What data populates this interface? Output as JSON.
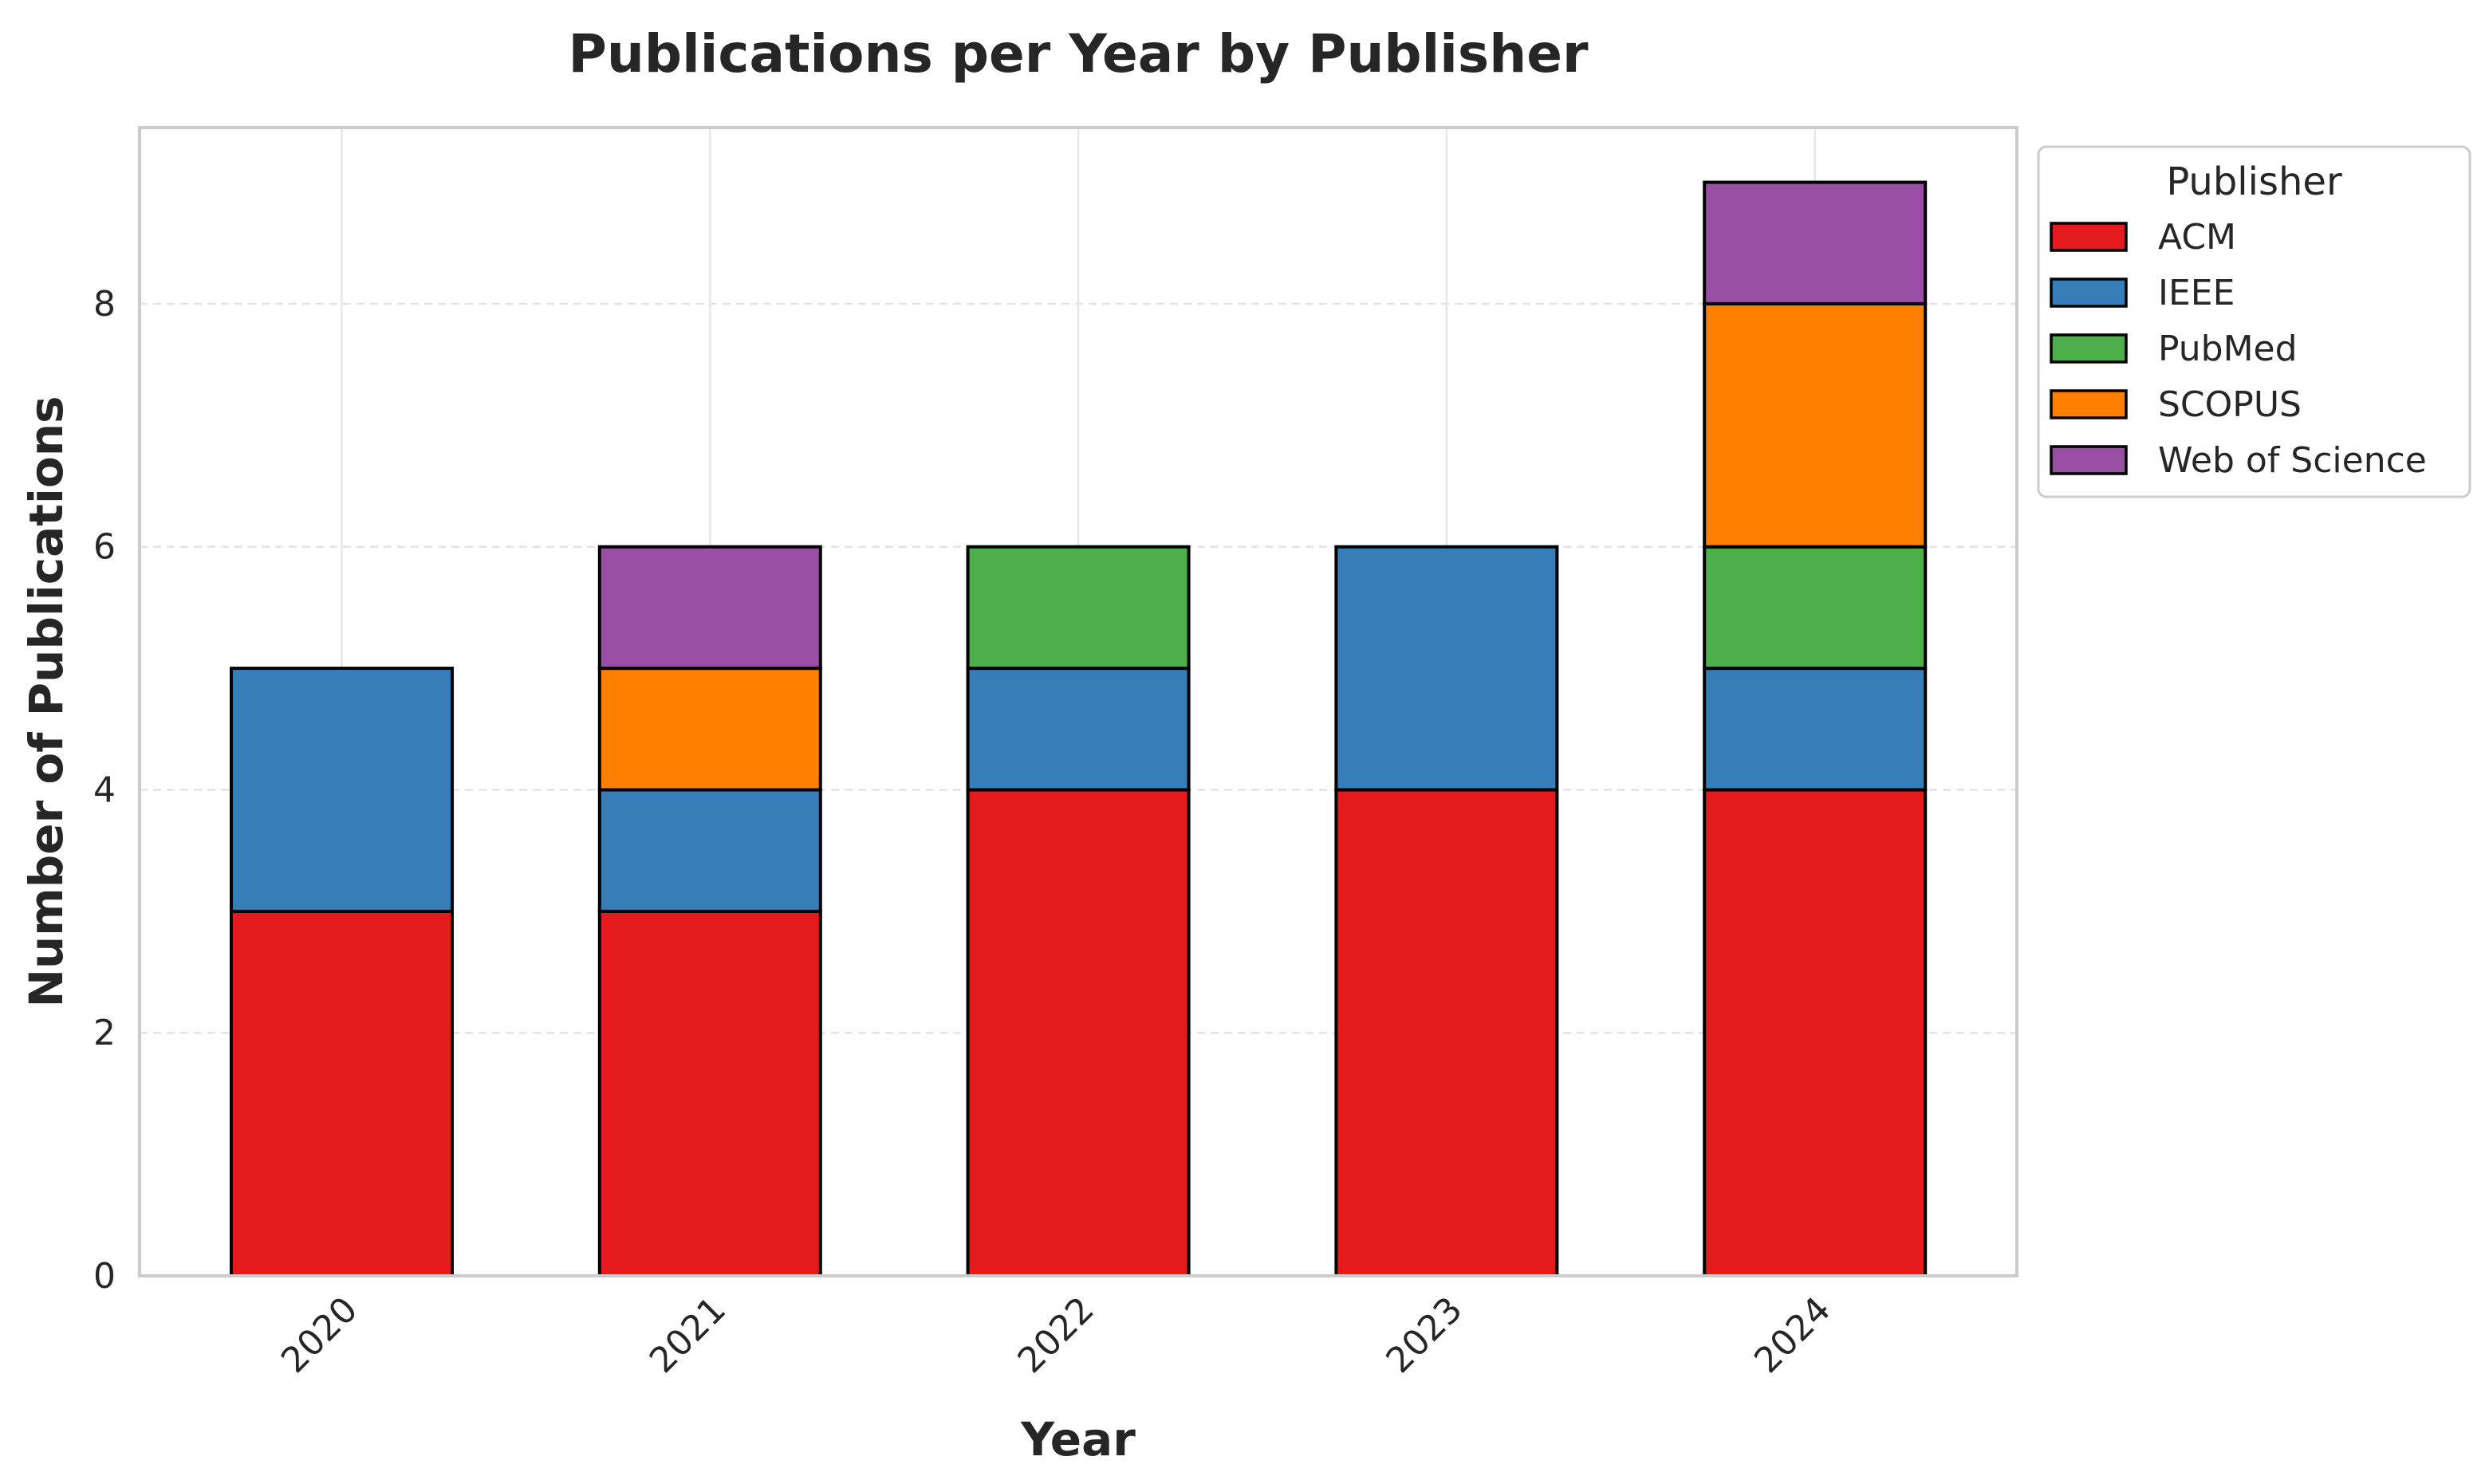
{
  "chart_data": {
    "type": "bar",
    "stacked": true,
    "title": "Publications per Year by Publisher",
    "xlabel": "Year",
    "ylabel": "Number of Publications",
    "categories": [
      "2020",
      "2021",
      "2022",
      "2023",
      "2024"
    ],
    "series": [
      {
        "name": "ACM",
        "color": "#e41a1c",
        "values": [
          3,
          3,
          4,
          4,
          4
        ]
      },
      {
        "name": "IEEE",
        "color": "#377eb8",
        "values": [
          2,
          1,
          1,
          2,
          1
        ]
      },
      {
        "name": "PubMed",
        "color": "#4daf4a",
        "values": [
          0,
          0,
          1,
          0,
          1
        ]
      },
      {
        "name": "SCOPUS",
        "color": "#ff7f00",
        "values": [
          0,
          1,
          0,
          0,
          2
        ]
      },
      {
        "name": "Web of Science",
        "color": "#984ea3",
        "values": [
          0,
          1,
          0,
          0,
          1
        ]
      }
    ],
    "ylim": [
      0,
      9.45
    ],
    "yticks": [
      0,
      2,
      4,
      6,
      8
    ],
    "grid": true,
    "legend": {
      "title": "Publisher",
      "placement": "outside right, top"
    }
  }
}
